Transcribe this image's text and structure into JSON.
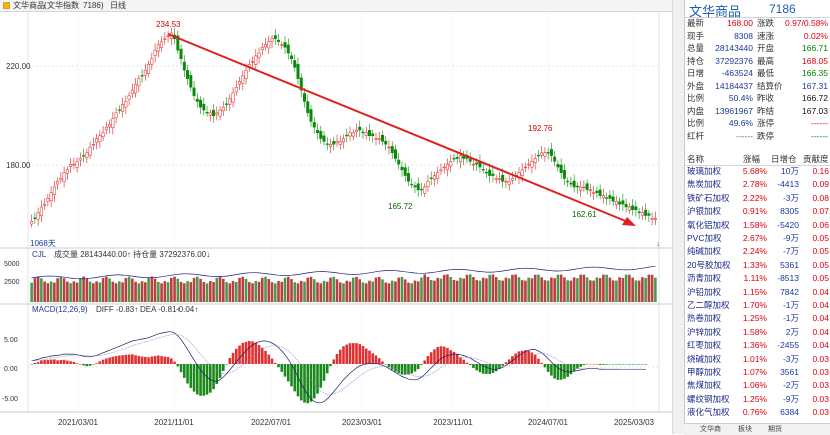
{
  "title": {
    "name": "文华商品",
    "index_label": "文华指数",
    "code": "7186",
    "period": "日线"
  },
  "main_chart": {
    "y_ticks": [
      "220.00",
      "180.00"
    ],
    "high_label": "234.53",
    "mid_high_label": "192.76",
    "low_label_1": "165.72",
    "low_label_2": "162.61",
    "count_label": "1068天",
    "trend_line_color": "#e02020"
  },
  "volume_panel": {
    "header": "CJL",
    "vol_text": "成交量 28143440.00↑ 持仓量 37292376.00↓",
    "y_ticks": [
      "5000",
      "2500"
    ]
  },
  "macd_panel": {
    "header": "MACD(12,26,9)",
    "diff_text": "DIFF -0.83↑",
    "dea_text": "DEA -0.81↑",
    "macd_text": "-0.04↑",
    "y_ticks": [
      "5.00",
      "0.00",
      "-5.00"
    ]
  },
  "x_ticks": [
    "2021/03/01",
    "2021/11/01",
    "2022/07/01",
    "2023/03/01",
    "2023/11/01",
    "2024/07/01",
    "2025/03/03"
  ],
  "chart_data": {
    "type": "candlestick",
    "y_range": [
      160,
      240
    ],
    "closes": [
      168,
      169,
      171,
      173,
      174,
      176,
      178,
      180,
      182,
      183,
      185,
      186,
      188,
      188,
      189,
      190,
      191,
      192,
      194,
      195,
      197,
      198,
      199,
      201,
      202,
      204,
      206,
      207,
      209,
      210,
      212,
      214,
      216,
      218,
      219,
      221,
      223,
      225,
      228,
      230,
      231,
      232,
      233,
      234,
      232,
      228,
      225,
      221,
      218,
      215,
      212,
      210,
      208,
      207,
      206,
      206,
      205,
      206,
      207,
      208,
      209,
      211,
      213,
      215,
      217,
      219,
      221,
      223,
      224,
      226,
      227,
      229,
      230,
      231,
      232,
      232,
      231,
      230,
      229,
      227,
      225,
      222,
      218,
      214,
      210,
      206,
      203,
      201,
      199,
      197,
      196,
      195,
      195,
      195,
      196,
      196,
      197,
      198,
      199,
      199,
      200,
      200,
      199,
      199,
      198,
      198,
      197,
      197,
      196,
      195,
      194,
      192,
      190,
      188,
      186,
      184,
      182,
      181,
      180,
      179,
      179,
      180,
      182,
      183,
      184,
      185,
      186,
      187,
      188,
      189,
      190,
      190,
      191,
      190,
      190,
      189,
      188,
      188,
      187,
      186,
      185,
      184,
      184,
      183,
      183,
      182,
      182,
      182,
      183,
      184,
      185,
      186,
      187,
      188,
      189,
      190,
      191,
      192,
      192,
      192,
      191,
      189,
      187,
      185,
      183,
      182,
      181,
      180,
      180,
      180,
      180,
      179,
      179,
      178,
      178,
      177,
      177,
      176,
      176,
      175,
      175,
      174,
      174,
      173,
      173,
      172,
      172,
      171,
      171,
      170,
      170,
      169,
      169
    ],
    "volume_range": [
      0,
      6000
    ],
    "macd_range": [
      -7,
      7
    ],
    "diff": [
      0.5,
      0.6,
      0.7,
      0.9,
      1.0,
      1.1,
      1.2,
      1.3,
      1.3,
      1.4,
      1.5,
      1.5,
      1.5,
      1.5,
      1.4,
      1.3,
      1.2,
      1.1,
      1.1,
      1.2,
      1.3,
      1.5,
      1.7,
      1.9,
      2.1,
      2.3,
      2.5,
      2.7,
      2.9,
      3.1,
      3.3,
      3.5,
      3.6,
      3.7,
      3.8,
      3.9,
      4.0,
      4.2,
      4.4,
      4.6,
      4.7,
      4.8,
      4.9,
      4.9,
      4.7,
      4.3,
      3.7,
      3.0,
      2.2,
      1.4,
      0.6,
      -0.2,
      -0.9,
      -1.5,
      -2.0,
      -2.4,
      -2.6,
      -2.6,
      -2.4,
      -2.0,
      -1.5,
      -0.9,
      -0.3,
      0.3,
      0.9,
      1.5,
      2.0,
      2.5,
      2.9,
      3.2,
      3.4,
      3.5,
      3.5,
      3.4,
      3.2,
      2.9,
      2.5,
      2.0,
      1.4,
      0.7,
      -0.1,
      -1.0,
      -2.0,
      -3.0,
      -3.9,
      -4.7,
      -5.3,
      -5.7,
      -5.9,
      -5.9,
      -5.7,
      -5.3,
      -4.8,
      -4.2,
      -3.6,
      -3.0,
      -2.4,
      -1.9,
      -1.4,
      -1.0,
      -0.6,
      -0.3,
      -0.1,
      0.0,
      0.1,
      0.1,
      0.1,
      0.0,
      -0.2,
      -0.4,
      -0.7,
      -1.0,
      -1.3,
      -1.6,
      -1.9,
      -2.1,
      -2.3,
      -2.4,
      -2.4,
      -2.3,
      -2.0,
      -1.6,
      -1.1,
      -0.6,
      -0.1,
      0.4,
      0.8,
      1.1,
      1.3,
      1.4,
      1.5,
      1.5,
      1.4,
      1.3,
      1.1,
      0.9,
      0.6,
      0.3,
      0.0,
      -0.3,
      -0.5,
      -0.7,
      -0.8,
      -0.8,
      -0.7,
      -0.5,
      -0.2,
      0.1,
      0.5,
      0.9,
      1.3,
      1.6,
      1.9,
      2.1,
      2.2,
      2.2,
      2.0,
      1.7,
      1.3,
      0.8,
      0.3,
      -0.2,
      -0.6,
      -0.9,
      -1.1,
      -1.2,
      -1.2,
      -1.1,
      -1.0,
      -0.9,
      -0.8,
      -0.7,
      -0.7,
      -0.7,
      -0.7,
      -0.8,
      -0.8,
      -0.8,
      -0.8,
      -0.8,
      -0.8,
      -0.8,
      -0.8,
      -0.8,
      -0.8,
      -0.8,
      -0.8,
      -0.8,
      -0.8,
      -0.83
    ]
  },
  "quote": {
    "rows": [
      {
        "l1": "最新",
        "v1": "168.00",
        "c1": "red",
        "l2": "涨跌",
        "v2": "0.97/0.58%",
        "c2": "red"
      },
      {
        "l1": "现手",
        "v1": "8308",
        "c1": "blue",
        "l2": "速涨",
        "v2": "0.02%",
        "c2": "red"
      },
      {
        "l1": "总量",
        "v1": "28143440",
        "c1": "blue",
        "l2": "开盘",
        "v2": "166.71",
        "c2": "green"
      },
      {
        "l1": "持仓",
        "v1": "37292376",
        "c1": "blue",
        "l2": "最高",
        "v2": "168.05",
        "c2": "red"
      },
      {
        "l1": "日增",
        "v1": "-463524",
        "c1": "blue",
        "l2": "最低",
        "v2": "166.35",
        "c2": "green"
      },
      {
        "l1": "外盘",
        "v1": "14184437",
        "c1": "blue",
        "l2": "结算价",
        "v2": "167.31",
        "c2": "blue"
      },
      {
        "l1": "比例",
        "v1": "50.4%",
        "c1": "blue",
        "l2": "昨收",
        "v2": "166.72",
        "c2": "black"
      },
      {
        "l1": "内盘",
        "v1": "13961967",
        "c1": "blue",
        "l2": "昨结",
        "v2": "167.03",
        "c2": "black"
      },
      {
        "l1": "比例",
        "v1": "49.6%",
        "c1": "blue",
        "l2": "涨停",
        "v2": "------",
        "c2": "red"
      },
      {
        "l1": "红杆",
        "v1": "------",
        "c1": "gray",
        "l2": "跌停",
        "v2": "------",
        "c2": "green"
      }
    ]
  },
  "components": {
    "headers": [
      "名称",
      "涨幅",
      "日增仓",
      "贡献度"
    ],
    "rows": [
      {
        "name": "玻璃加权",
        "pct": "5.68%",
        "oi": "10万",
        "oi_c": "blue",
        "contrib": "0.16"
      },
      {
        "name": "焦炭加权",
        "pct": "2.78%",
        "oi": "-4413",
        "oi_c": "blue",
        "contrib": "0.09"
      },
      {
        "name": "铁矿石加权",
        "pct": "2.22%",
        "oi": "-3万",
        "oi_c": "blue",
        "contrib": "0.08"
      },
      {
        "name": "沪银加权",
        "pct": "0.91%",
        "oi": "8305",
        "oi_c": "blue",
        "contrib": "0.07"
      },
      {
        "name": "氧化铝加权",
        "pct": "1.58%",
        "oi": "-5420",
        "oi_c": "blue",
        "contrib": "0.06"
      },
      {
        "name": "PVC加权",
        "pct": "2.67%",
        "oi": "-9万",
        "oi_c": "blue",
        "contrib": "0.05"
      },
      {
        "name": "纯碱加权",
        "pct": "2.24%",
        "oi": "-7万",
        "oi_c": "blue",
        "contrib": "0.05"
      },
      {
        "name": "20号胶加权",
        "pct": "1.33%",
        "oi": "5361",
        "oi_c": "blue",
        "contrib": "0.05"
      },
      {
        "name": "沥青加权",
        "pct": "1.11%",
        "oi": "-8513",
        "oi_c": "blue",
        "contrib": "0.05"
      },
      {
        "name": "沪铅加权",
        "pct": "1.15%",
        "oi": "7842",
        "oi_c": "blue",
        "contrib": "0.04"
      },
      {
        "name": "乙二醇加权",
        "pct": "1.70%",
        "oi": "-1万",
        "oi_c": "blue",
        "contrib": "0.04"
      },
      {
        "name": "热卷加权",
        "pct": "1.25%",
        "oi": "-1万",
        "oi_c": "blue",
        "contrib": "0.04"
      },
      {
        "name": "沪锌加权",
        "pct": "1.58%",
        "oi": "2万",
        "oi_c": "blue",
        "contrib": "0.04"
      },
      {
        "name": "红枣加权",
        "pct": "1.36%",
        "oi": "-2455",
        "oi_c": "blue",
        "contrib": "0.04"
      },
      {
        "name": "烧碱加权",
        "pct": "1.01%",
        "oi": "-3万",
        "oi_c": "blue",
        "contrib": "0.03"
      },
      {
        "name": "甲醇加权",
        "pct": "1.07%",
        "oi": "3561",
        "oi_c": "blue",
        "contrib": "0.03"
      },
      {
        "name": "焦煤加权",
        "pct": "1.06%",
        "oi": "-2万",
        "oi_c": "blue",
        "contrib": "0.03"
      },
      {
        "name": "螺纹钢加权",
        "pct": "1.25%",
        "oi": "-9万",
        "oi_c": "blue",
        "contrib": "0.03"
      },
      {
        "name": "液化气加权",
        "pct": "0.76%",
        "oi": "6384",
        "oi_c": "blue",
        "contrib": "0.03"
      }
    ]
  },
  "bottom_tabs": [
    "文华商",
    "板块",
    "期货"
  ]
}
